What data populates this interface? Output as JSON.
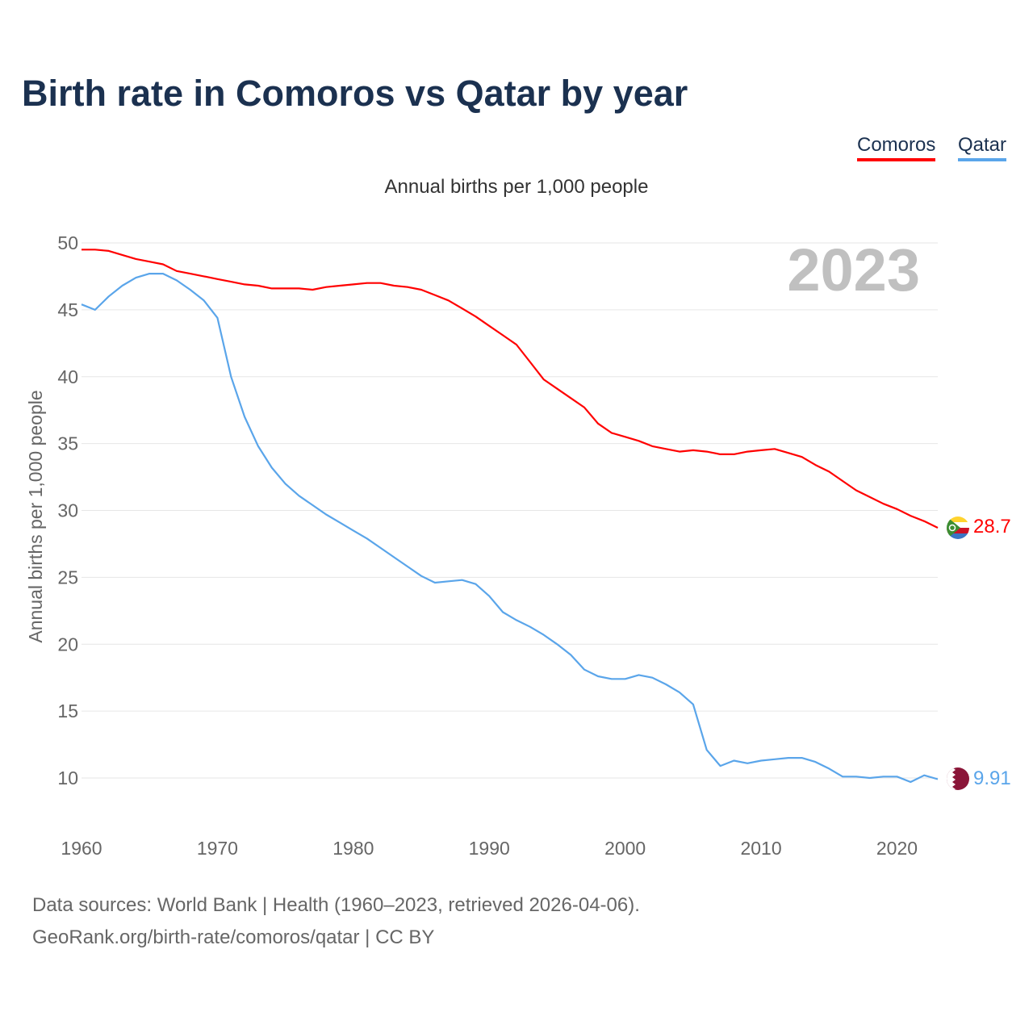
{
  "chart_data": {
    "type": "line",
    "title": "Birth rate in Comoros vs Qatar by year",
    "subtitle": "Annual births per 1,000 people",
    "ylabel": "Annual births per 1,000 people",
    "xlabel": "",
    "year_label": "2023",
    "ylim": [
      7,
      50
    ],
    "xlim": [
      1960,
      2023
    ],
    "yticks": [
      10,
      15,
      20,
      25,
      30,
      35,
      40,
      45,
      50
    ],
    "xticks": [
      1960,
      1970,
      1980,
      1990,
      2000,
      2010,
      2020
    ],
    "grid": true,
    "legend_position": "top-right",
    "x": [
      1960,
      1961,
      1962,
      1963,
      1964,
      1965,
      1966,
      1967,
      1968,
      1969,
      1970,
      1971,
      1972,
      1973,
      1974,
      1975,
      1976,
      1977,
      1978,
      1979,
      1980,
      1981,
      1982,
      1983,
      1984,
      1985,
      1986,
      1987,
      1988,
      1989,
      1990,
      1991,
      1992,
      1993,
      1994,
      1995,
      1996,
      1997,
      1998,
      1999,
      2000,
      2001,
      2002,
      2003,
      2004,
      2005,
      2006,
      2007,
      2008,
      2009,
      2010,
      2011,
      2012,
      2013,
      2014,
      2015,
      2016,
      2017,
      2018,
      2019,
      2020,
      2021,
      2022,
      2023
    ],
    "series": [
      {
        "name": "Comoros",
        "color": "#ff0000",
        "end_label": "28.7",
        "values": [
          49.5,
          49.5,
          49.4,
          49.1,
          48.8,
          48.6,
          48.4,
          47.9,
          47.7,
          47.5,
          47.3,
          47.1,
          46.9,
          46.8,
          46.6,
          46.6,
          46.6,
          46.5,
          46.7,
          46.8,
          46.9,
          47.0,
          47.0,
          46.8,
          46.7,
          46.5,
          46.1,
          45.7,
          45.1,
          44.5,
          43.8,
          43.1,
          42.4,
          41.1,
          39.8,
          39.1,
          38.4,
          37.7,
          36.5,
          35.8,
          35.5,
          35.2,
          34.8,
          34.6,
          34.4,
          34.5,
          34.4,
          34.2,
          34.2,
          34.4,
          34.5,
          34.6,
          34.3,
          34.0,
          33.4,
          32.9,
          32.2,
          31.5,
          31.0,
          30.5,
          30.1,
          29.6,
          29.2,
          28.7
        ]
      },
      {
        "name": "Qatar",
        "color": "#5aa5ea",
        "end_label": "9.91",
        "values": [
          45.4,
          45.0,
          46.0,
          46.8,
          47.4,
          47.7,
          47.7,
          47.2,
          46.5,
          45.7,
          44.4,
          40.0,
          37.0,
          34.8,
          33.2,
          32.0,
          31.1,
          30.4,
          29.7,
          29.1,
          28.5,
          27.9,
          27.2,
          26.5,
          25.8,
          25.1,
          24.6,
          24.7,
          24.8,
          24.5,
          23.6,
          22.4,
          21.8,
          21.3,
          20.7,
          20.0,
          19.2,
          18.1,
          17.6,
          17.4,
          17.4,
          17.7,
          17.5,
          17.0,
          16.4,
          15.5,
          12.1,
          10.9,
          11.3,
          11.1,
          11.3,
          11.4,
          11.5,
          11.5,
          11.2,
          10.7,
          10.1,
          10.1,
          10.0,
          10.1,
          10.1,
          9.7,
          10.2,
          9.91
        ]
      }
    ]
  },
  "footer": {
    "line1": "Data sources: World Bank | Health (1960–2023, retrieved 2026-04-06).",
    "line2": "GeoRank.org/birth-rate/comoros/qatar | CC BY"
  }
}
